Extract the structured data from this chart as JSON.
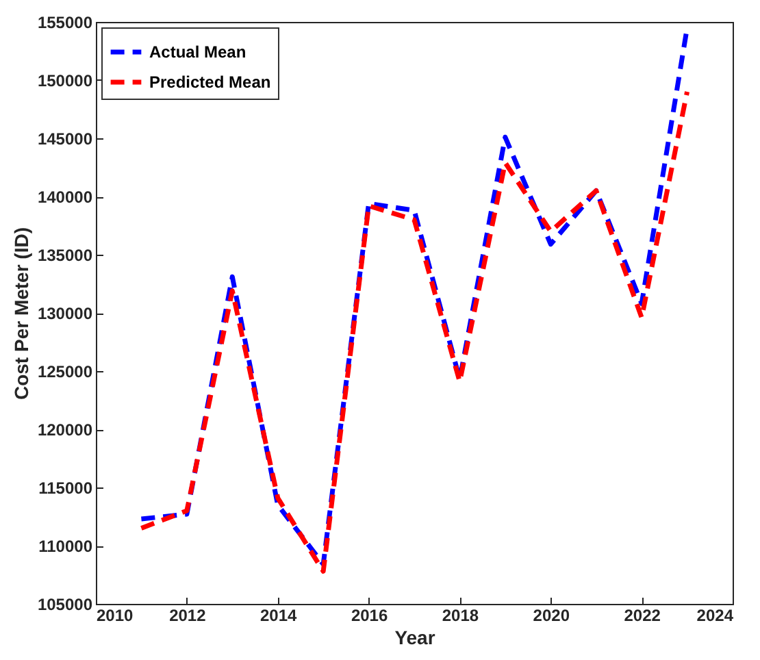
{
  "chart_data": {
    "type": "line",
    "xlabel": "Year",
    "ylabel": "Cost Per Meter (ID)",
    "x": [
      2011,
      2012,
      2013,
      2014,
      2015,
      2016,
      2017,
      2018,
      2019,
      2020,
      2021,
      2022,
      2023
    ],
    "series": [
      {
        "name": "Actual Mean",
        "color": "#0000ff",
        "values": [
          112300,
          112700,
          133100,
          113500,
          108400,
          139400,
          138800,
          124300,
          145100,
          135900,
          140500,
          130800,
          154500
        ]
      },
      {
        "name": "Predicted Mean",
        "color": "#ff0000",
        "values": [
          111500,
          113000,
          131900,
          114100,
          107800,
          139200,
          138000,
          124100,
          142900,
          137000,
          140500,
          129600,
          149000
        ]
      }
    ],
    "xlim": [
      2010,
      2024
    ],
    "xticks": [
      2010,
      2012,
      2014,
      2016,
      2018,
      2020,
      2022,
      2024
    ],
    "ylim": [
      105000,
      155000
    ],
    "yticks": [
      105000,
      110000,
      115000,
      120000,
      125000,
      130000,
      135000,
      140000,
      145000,
      150000,
      155000
    ],
    "grid": false,
    "legend": "top left",
    "line_style": "dashed",
    "marker": "none"
  }
}
